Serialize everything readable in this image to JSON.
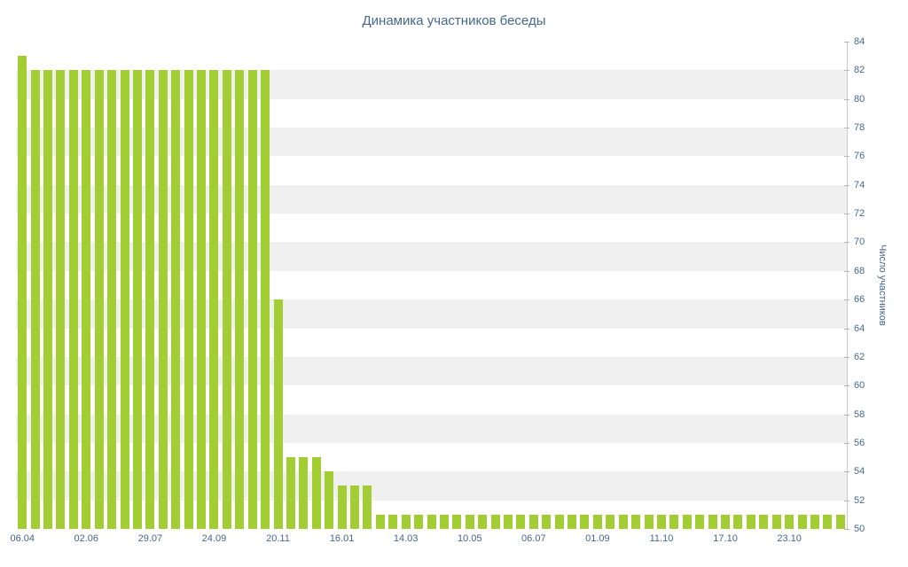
{
  "chart_data": {
    "type": "bar",
    "title": "Динамика участников беседы",
    "ylabel": "Число участников",
    "ylim": [
      50,
      84
    ],
    "ytick_step": 2,
    "x_tick_labels": [
      "06.04",
      "02.06",
      "29.07",
      "24.09",
      "20.11",
      "16.01",
      "14.03",
      "10.05",
      "06.07",
      "01.09",
      "11.10",
      "17.10",
      "23.10"
    ],
    "x_tick_interval": 5,
    "values": [
      83,
      82,
      82,
      82,
      82,
      82,
      82,
      82,
      82,
      82,
      82,
      82,
      82,
      82,
      82,
      82,
      82,
      82,
      82,
      82,
      66,
      55,
      55,
      55,
      54,
      53,
      53,
      53,
      51,
      51,
      51,
      51,
      51,
      51,
      51,
      51,
      51,
      51,
      51,
      51,
      51,
      51,
      51,
      51,
      51,
      51,
      51,
      51,
      51,
      51,
      51,
      51,
      51,
      51,
      51,
      51,
      51,
      51,
      51,
      51,
      51,
      51,
      51,
      51,
      51
    ],
    "bar_color": "#a2ce33",
    "text_color": "#45688e",
    "stripe_color": "#f0f0f0",
    "axis_color": "#c9c9c9",
    "legend": "none",
    "grid": "striped-bands"
  }
}
